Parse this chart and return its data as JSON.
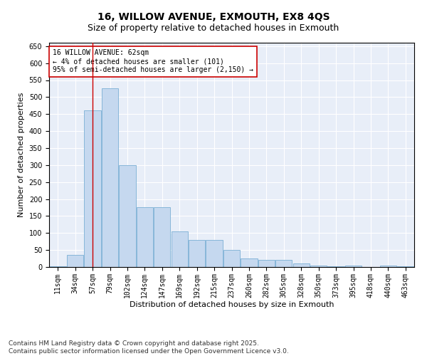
{
  "title1": "16, WILLOW AVENUE, EXMOUTH, EX8 4QS",
  "title2": "Size of property relative to detached houses in Exmouth",
  "xlabel": "Distribution of detached houses by size in Exmouth",
  "ylabel": "Number of detached properties",
  "categories": [
    "11sqm",
    "34sqm",
    "57sqm",
    "79sqm",
    "102sqm",
    "124sqm",
    "147sqm",
    "169sqm",
    "192sqm",
    "215sqm",
    "237sqm",
    "260sqm",
    "282sqm",
    "305sqm",
    "328sqm",
    "350sqm",
    "373sqm",
    "395sqm",
    "418sqm",
    "440sqm",
    "463sqm"
  ],
  "values": [
    3,
    35,
    460,
    525,
    300,
    175,
    175,
    105,
    80,
    80,
    50,
    25,
    20,
    20,
    10,
    5,
    2,
    5,
    1,
    5,
    3
  ],
  "bar_color": "#c5d8ef",
  "bar_edge_color": "#7aafd4",
  "vline_x": 2,
  "vline_color": "#cc0000",
  "annotation_text": "16 WILLOW AVENUE: 62sqm\n← 4% of detached houses are smaller (101)\n95% of semi-detached houses are larger (2,150) →",
  "annotation_box_color": "#ffffff",
  "annotation_box_edge": "#cc0000",
  "ylim": [
    0,
    660
  ],
  "yticks": [
    0,
    50,
    100,
    150,
    200,
    250,
    300,
    350,
    400,
    450,
    500,
    550,
    600,
    650
  ],
  "bg_color": "#e8eef8",
  "grid_color": "#ffffff",
  "footer": "Contains HM Land Registry data © Crown copyright and database right 2025.\nContains public sector information licensed under the Open Government Licence v3.0.",
  "title_fontsize": 10,
  "subtitle_fontsize": 9,
  "axis_label_fontsize": 8,
  "tick_fontsize": 7,
  "annot_fontsize": 7,
  "footer_fontsize": 6.5
}
